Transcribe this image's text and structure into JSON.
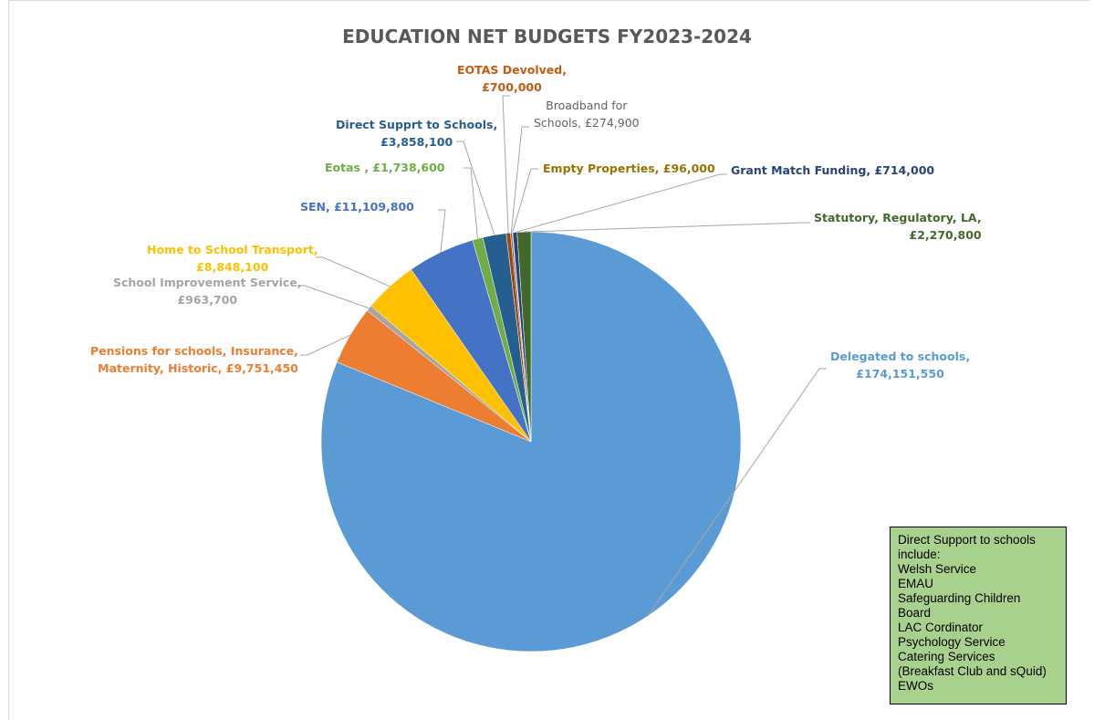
{
  "chart_data": {
    "type": "pie",
    "title": "EDUCATION NET BUDGETS FY2023-2024",
    "slices": [
      {
        "name": "Delegated to schools",
        "value": 174151550,
        "value_label": "£174,151,550",
        "color": "#5b9bd5"
      },
      {
        "name": "Pensions for schools, Insurance, Maternity, Historic",
        "value": 9751450,
        "value_label": "£9,751,450",
        "color": "#ed7d31"
      },
      {
        "name": "School Improvement Service",
        "value": 963700,
        "value_label": "£963,700",
        "color": "#a5a5a5"
      },
      {
        "name": "Home to School Transport",
        "value": 8848100,
        "value_label": "£8,848,100",
        "color": "#ffc000"
      },
      {
        "name": "SEN",
        "value": 11109800,
        "value_label": "£11,109,800",
        "color": "#4472c4"
      },
      {
        "name": "Eotas",
        "value": 1738600,
        "value_label": "£1,738,600",
        "color": "#70ad47"
      },
      {
        "name": "Direct Supprt to Schools",
        "value": 3858100,
        "value_label": "£3,858,100",
        "color": "#255e91"
      },
      {
        "name": "EOTAS Devolved",
        "value": 700000,
        "value_label": "£700,000",
        "color": "#9e480e"
      },
      {
        "name": "Broadband for Schools",
        "value": 274900,
        "value_label": "£274,900",
        "color": "#636363"
      },
      {
        "name": "Empty Properties",
        "value": 96000,
        "value_label": "£96,000",
        "color": "#997300"
      },
      {
        "name": "Grant Match Funding",
        "value": 714000,
        "value_label": "£714,000",
        "color": "#264478"
      },
      {
        "name": "Statutory, Regulatory, LA",
        "value": 2270800,
        "value_label": "£2,270,800",
        "color": "#43682b"
      }
    ]
  },
  "labels": [
    {
      "id": "delegated",
      "lines": [
        "Delegated to schools,",
        "£174,151,550"
      ],
      "color": "#5b9bd5"
    },
    {
      "id": "pensions",
      "lines": [
        "Pensions for schools, Insurance,",
        "Maternity, Historic, £9,751,450"
      ],
      "color": "#ed7d31"
    },
    {
      "id": "school-improvement",
      "lines": [
        "School Improvement Service,",
        "£963,700"
      ],
      "color": "#a5a5a5"
    },
    {
      "id": "home-to-school",
      "lines": [
        "Home to School Transport,",
        "£8,848,100"
      ],
      "color": "#ffc000"
    },
    {
      "id": "sen",
      "lines": [
        "SEN, £11,109,800"
      ],
      "color": "#4472c4"
    },
    {
      "id": "eotas",
      "lines": [
        "Eotas , £1,738,600"
      ],
      "color": "#70ad47"
    },
    {
      "id": "direct-supprt",
      "lines": [
        "Direct Supprt to Schools,",
        "£3,858,100"
      ],
      "color": "#255e91"
    },
    {
      "id": "eotas-devolved",
      "lines": [
        "EOTAS Devolved,",
        "£700,000"
      ],
      "color": "#c55a11"
    },
    {
      "id": "broadband",
      "lines": [
        "Broadband for",
        "Schools, £274,900"
      ],
      "color": "#636363"
    },
    {
      "id": "empty-properties",
      "lines": [
        "Empty Properties, £96,000"
      ],
      "color": "#997300"
    },
    {
      "id": "grant-match",
      "lines": [
        "Grant Match Funding, £714,000"
      ],
      "color": "#264478"
    },
    {
      "id": "statutory",
      "lines": [
        "Statutory, Regulatory, LA,",
        "£2,270,800"
      ],
      "color": "#43682b"
    }
  ],
  "note": {
    "lines": [
      "Direct Support to schools",
      "include:",
      "Welsh Service",
      "EMAU",
      "Safeguarding Children",
      "Board",
      "LAC Cordinator",
      "Psychology Service",
      "Catering Services",
      "(Breakfast Club and sQuid)",
      "EWOs"
    ],
    "background": "#a9d18e"
  }
}
